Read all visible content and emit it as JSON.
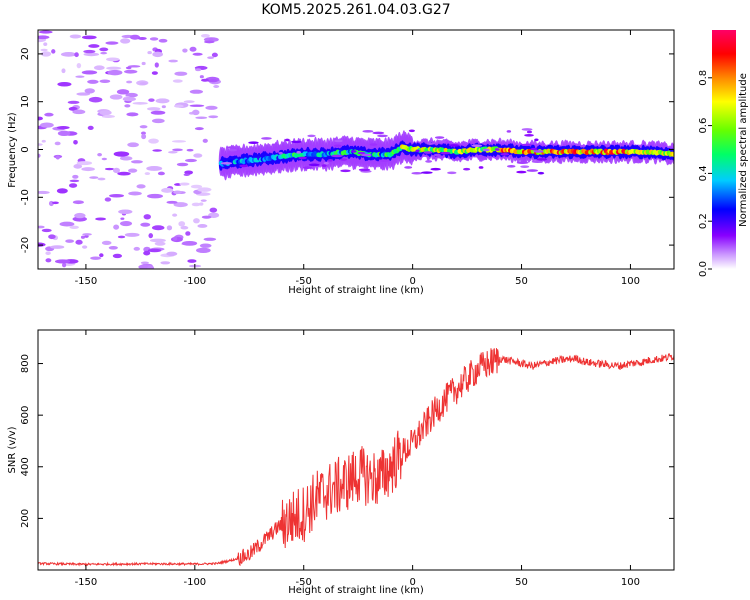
{
  "figure": {
    "title": "KOM5.2025.261.04.03.G27"
  },
  "chart_data": [
    {
      "type": "heatmap",
      "title": "KOM5.2025.261.04.03.G27",
      "xlabel": "Height of straight line (km)",
      "ylabel": "Frequency (Hz)",
      "xlim": [
        -172,
        120
      ],
      "ylim": [
        -25,
        25
      ],
      "xticks": [
        -150,
        -100,
        -50,
        0,
        50,
        100
      ],
      "yticks": [
        -20,
        -10,
        0,
        10,
        20
      ],
      "colorbar": {
        "label": "Normalized spectral amplitude",
        "range": [
          0,
          1
        ],
        "ticks": [
          0.0,
          0.2,
          0.4,
          0.6,
          0.8
        ],
        "colors": [
          "#ffffff",
          "#cc99ff",
          "#8800ff",
          "#0000ff",
          "#00ccff",
          "#00ff66",
          "#66ff00",
          "#ffff00",
          "#ff8800",
          "#ff0000",
          "#ff0066"
        ]
      },
      "features": {
        "scattered_noise_x_range": [
          -172,
          -90
        ],
        "signal_trace": {
          "x_start": -88,
          "x_end": 120,
          "frequency_hz": [
            [
              -88,
              -3
            ],
            [
              -80,
              -2.5
            ],
            [
              -70,
              -2
            ],
            [
              -60,
              -1.5
            ],
            [
              -50,
              -1
            ],
            [
              -40,
              -1
            ],
            [
              -30,
              -0.5
            ],
            [
              -20,
              -1
            ],
            [
              -10,
              -1
            ],
            [
              -5,
              0.5
            ],
            [
              0,
              0
            ],
            [
              10,
              0
            ],
            [
              20,
              -0.5
            ],
            [
              30,
              0
            ],
            [
              40,
              0
            ],
            [
              50,
              -0.5
            ],
            [
              60,
              -0.5
            ],
            [
              70,
              -0.5
            ],
            [
              80,
              -0.5
            ],
            [
              90,
              -0.5
            ],
            [
              100,
              -0.5
            ],
            [
              110,
              -0.5
            ],
            [
              120,
              -1
            ]
          ],
          "peak_amplitude_region_km": [
            40,
            100
          ]
        }
      }
    },
    {
      "type": "line",
      "xlabel": "Height of straight line (km)",
      "ylabel": "SNR (v/v)",
      "xlim": [
        -172,
        120
      ],
      "ylim": [
        0,
        930
      ],
      "xticks": [
        -150,
        -100,
        -50,
        0,
        50,
        100
      ],
      "yticks": [
        200,
        400,
        600,
        800
      ],
      "series": [
        {
          "name": "SNR",
          "color": "#ee3333",
          "x": [
            -172,
            -150,
            -120,
            -100,
            -90,
            -82,
            -75,
            -70,
            -65,
            -60,
            -55,
            -50,
            -45,
            -40,
            -35,
            -30,
            -25,
            -20,
            -15,
            -10,
            -8,
            -5,
            0,
            5,
            10,
            15,
            20,
            25,
            30,
            35,
            40,
            45,
            50,
            55,
            60,
            65,
            70,
            75,
            80,
            85,
            90,
            95,
            100,
            105,
            110,
            115,
            120
          ],
          "y": [
            25,
            22,
            24,
            23,
            25,
            40,
            60,
            100,
            140,
            180,
            200,
            220,
            270,
            300,
            320,
            340,
            370,
            360,
            350,
            400,
            420,
            450,
            490,
            550,
            610,
            660,
            700,
            740,
            780,
            800,
            820,
            810,
            800,
            790,
            800,
            810,
            815,
            820,
            805,
            800,
            795,
            790,
            800,
            805,
            815,
            820,
            830
          ]
        }
      ]
    }
  ]
}
